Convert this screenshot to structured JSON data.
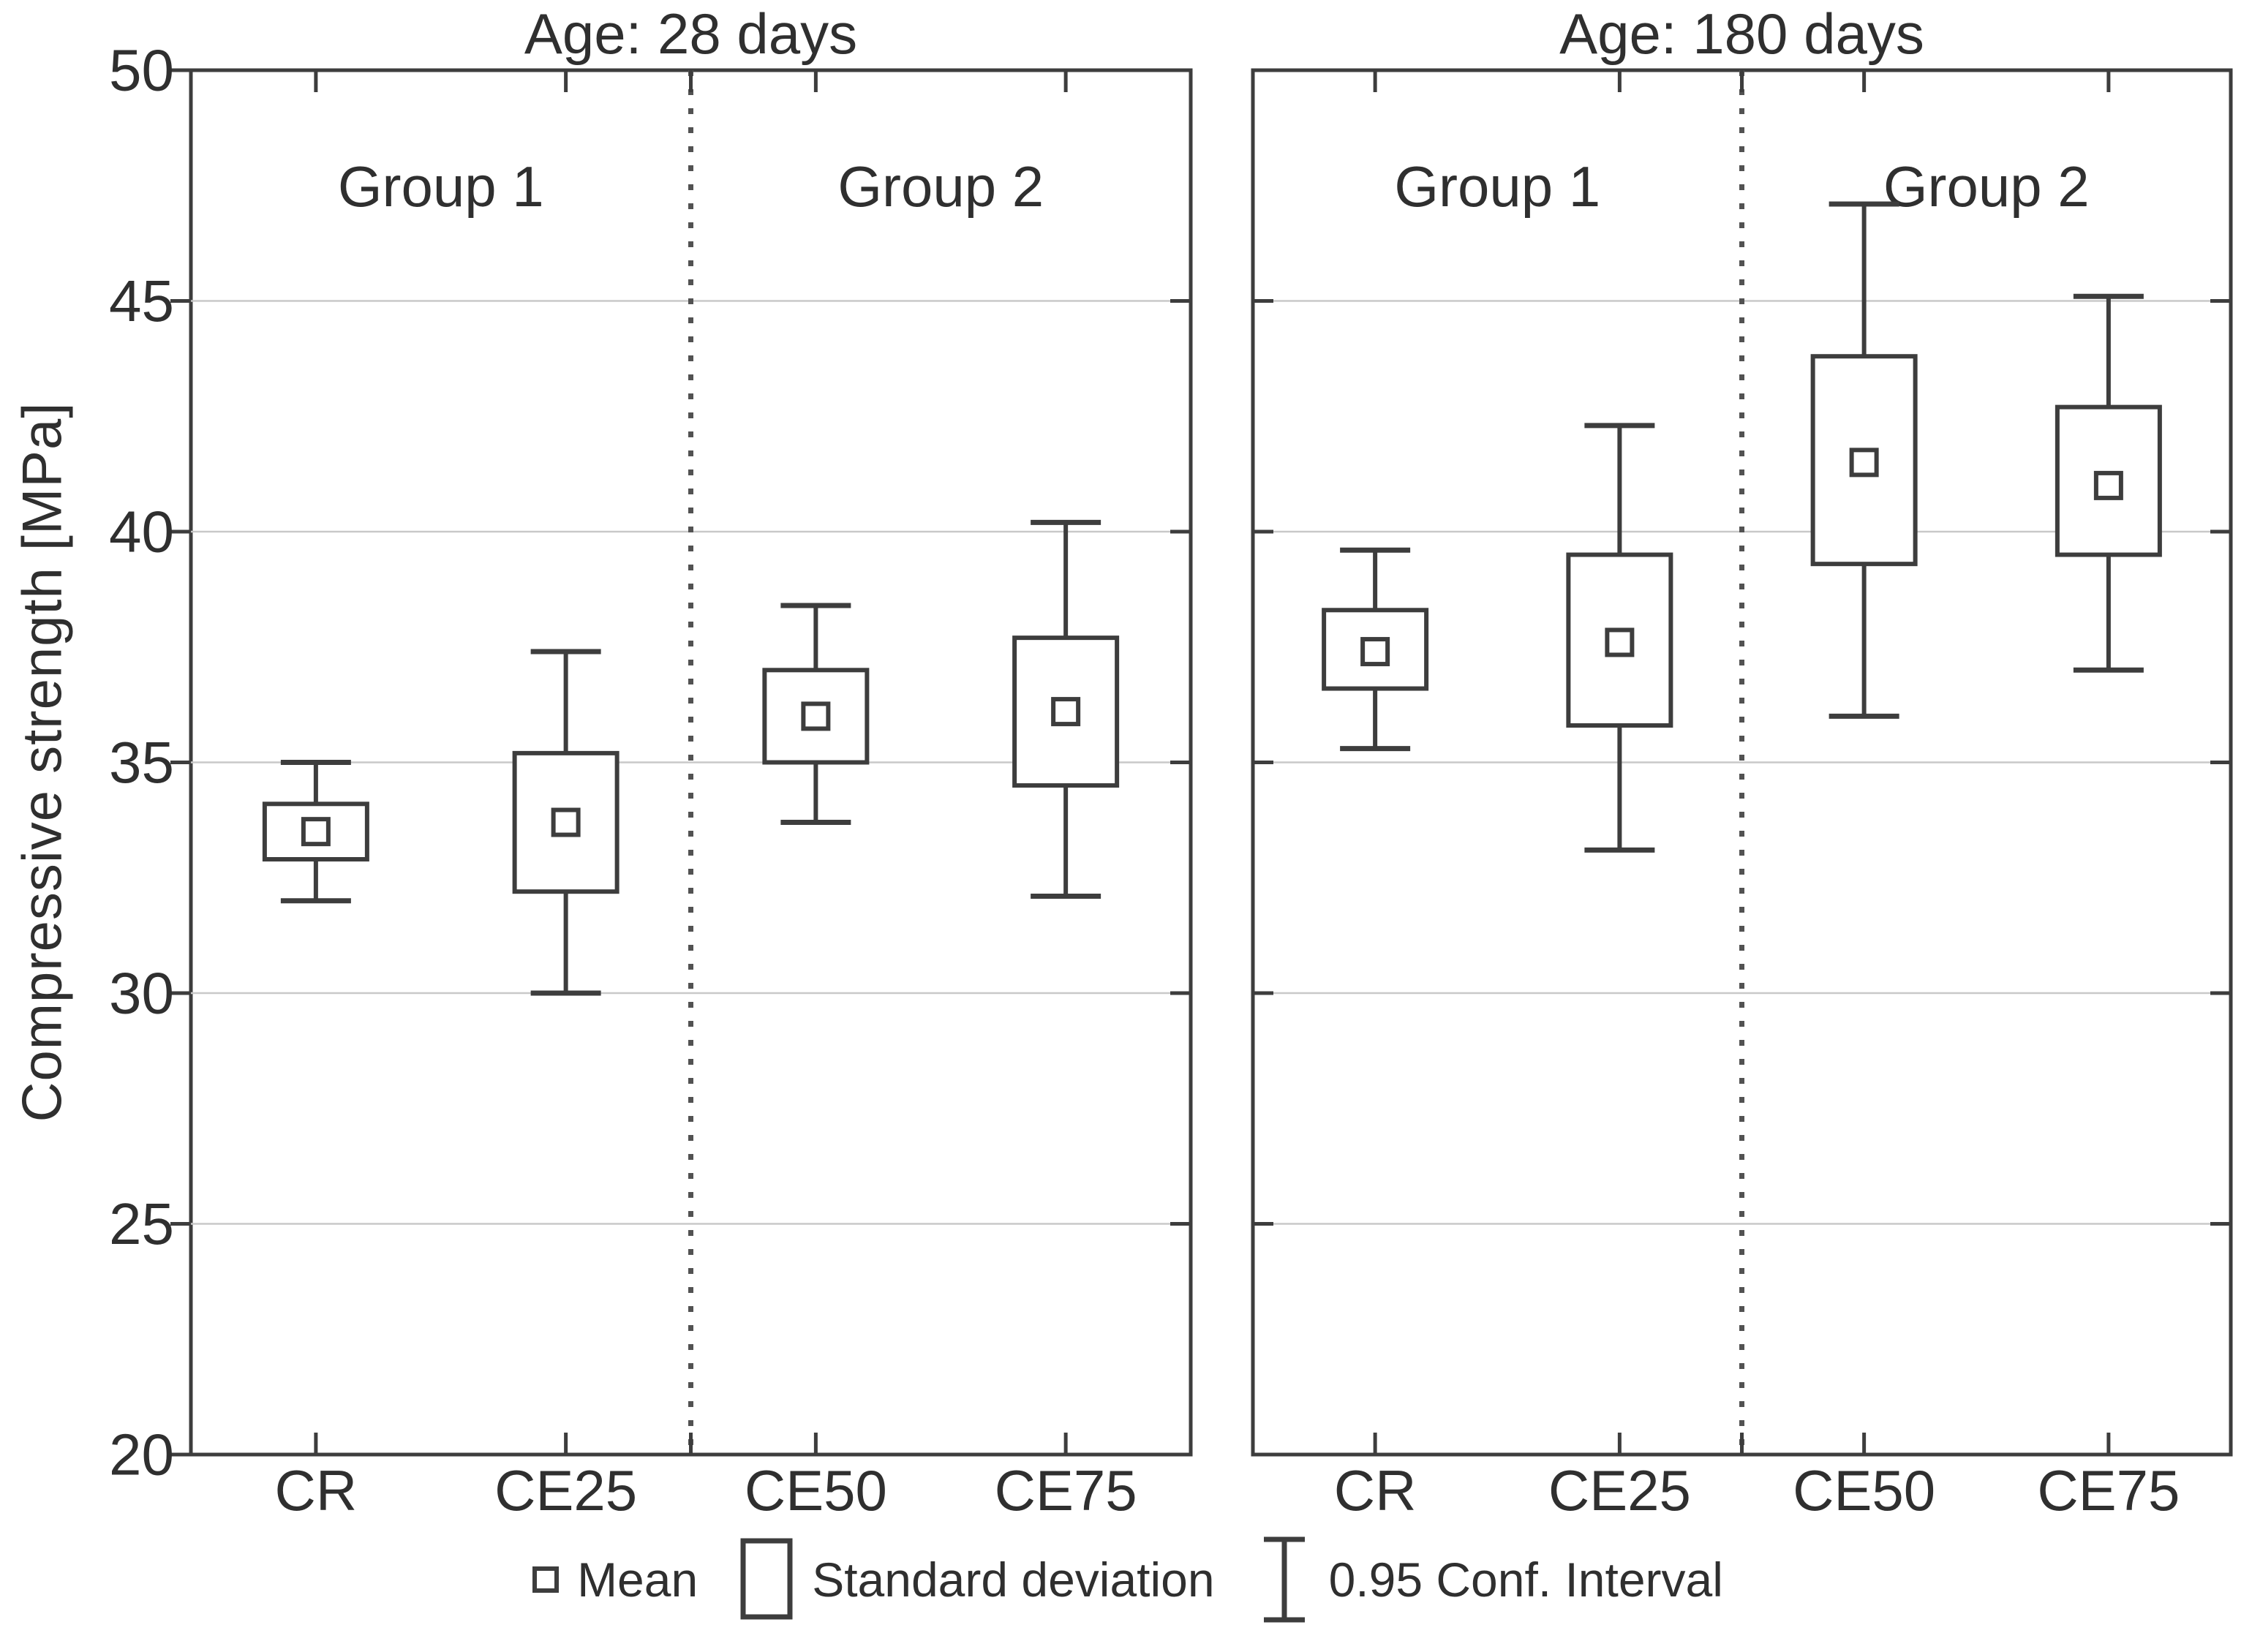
{
  "chart_data": {
    "type": "box-mean-sd-ci",
    "ylabel": "Compressive strength [MPa]",
    "y_axis": {
      "min": 20,
      "max": 50,
      "tick_step": 5,
      "ticks": [
        50,
        45,
        40,
        35,
        30,
        25,
        20
      ],
      "gridlines": [
        45,
        40,
        35,
        30,
        25
      ],
      "grid_on": true
    },
    "categories": [
      "CR",
      "CE25",
      "CE50",
      "CE75"
    ],
    "group_labels": [
      "Group 1",
      "Group 2"
    ],
    "panels": [
      {
        "title": "Age: 28 days",
        "boxes": [
          {
            "category": "CR",
            "mean": 33.5,
            "sd_low": 32.9,
            "sd_high": 34.1,
            "ci_low": 32.0,
            "ci_high": 35.0
          },
          {
            "category": "CE25",
            "mean": 33.7,
            "sd_low": 32.2,
            "sd_high": 35.2,
            "ci_low": 30.0,
            "ci_high": 37.4
          },
          {
            "category": "CE50",
            "mean": 36.0,
            "sd_low": 35.0,
            "sd_high": 37.0,
            "ci_low": 33.7,
            "ci_high": 38.4
          },
          {
            "category": "CE75",
            "mean": 36.1,
            "sd_low": 34.5,
            "sd_high": 37.7,
            "ci_low": 32.1,
            "ci_high": 40.2
          }
        ]
      },
      {
        "title": "Age: 180 days",
        "boxes": [
          {
            "category": "CR",
            "mean": 37.4,
            "sd_low": 36.6,
            "sd_high": 38.3,
            "ci_low": 35.3,
            "ci_high": 39.6
          },
          {
            "category": "CE25",
            "mean": 37.6,
            "sd_low": 35.8,
            "sd_high": 39.5,
            "ci_low": 33.1,
            "ci_high": 42.3
          },
          {
            "category": "CE50",
            "mean": 41.5,
            "sd_low": 39.3,
            "sd_high": 43.8,
            "ci_low": 36.0,
            "ci_high": 47.1
          },
          {
            "category": "CE75",
            "mean": 41.0,
            "sd_low": 39.5,
            "sd_high": 42.7,
            "ci_low": 37.0,
            "ci_high": 45.1
          }
        ]
      }
    ],
    "legend": [
      {
        "marker": "mean-square",
        "label": "Mean"
      },
      {
        "marker": "sd-box",
        "label": "Standard deviation"
      },
      {
        "marker": "ci-whisker",
        "label": "0.95 Conf. Interval"
      }
    ],
    "legend_position": "bottom",
    "colors": {
      "line": "#3d3d3d",
      "grid": "#c9c9c9",
      "divider": "#525252",
      "text": "#2f2f2f",
      "background": "#ffffff"
    }
  }
}
